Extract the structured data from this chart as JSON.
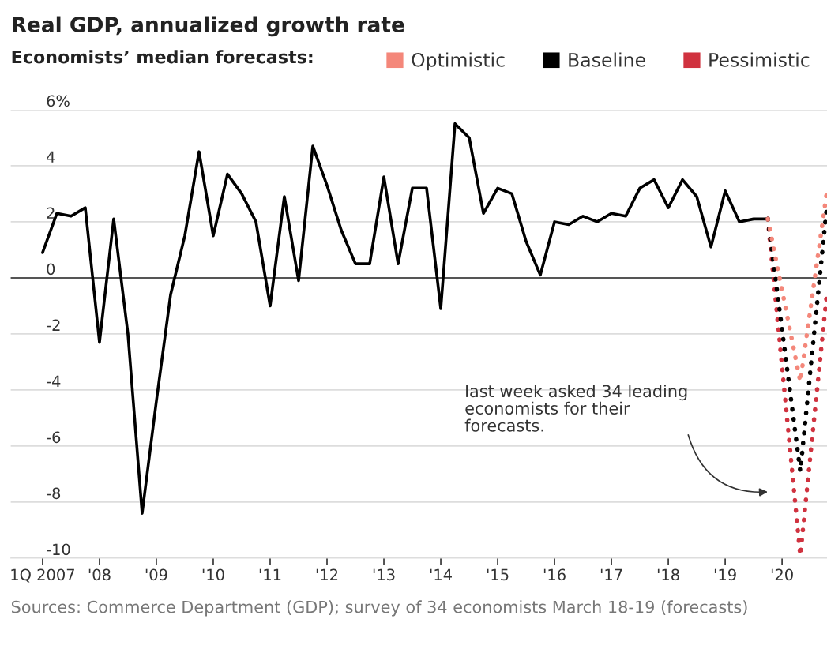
{
  "chart_data": {
    "type": "line",
    "title": "Real GDP, annualized growth rate",
    "legend_title": "Economists’ median forecasts:",
    "x": [
      2007,
      2007.25,
      2007.5,
      2007.75,
      2008,
      2008.25,
      2008.5,
      2008.75,
      2009,
      2009.25,
      2009.5,
      2009.75,
      2010,
      2010.25,
      2010.5,
      2010.75,
      2011,
      2011.25,
      2011.5,
      2011.75,
      2012,
      2012.25,
      2012.5,
      2012.75,
      2013,
      2013.25,
      2013.5,
      2013.75,
      2014,
      2014.25,
      2014.5,
      2014.75,
      2015,
      2015.25,
      2015.5,
      2015.75,
      2016,
      2016.25,
      2016.5,
      2016.75,
      2017,
      2017.25,
      2017.5,
      2017.75,
      2018,
      2018.25,
      2018.5,
      2018.75,
      2019,
      2019.25,
      2019.5,
      2019.75
    ],
    "series": [
      {
        "color": "#000000",
        "line_style": "solid",
        "values": [
          0.9,
          2.3,
          2.2,
          2.5,
          -2.3,
          2.1,
          -2.0,
          -8.4,
          -4.4,
          -0.6,
          1.5,
          4.5,
          1.5,
          3.7,
          3.0,
          2.0,
          -1.0,
          2.9,
          -0.1,
          4.7,
          3.3,
          1.7,
          0.5,
          0.5,
          3.6,
          0.5,
          3.2,
          3.2,
          -1.1,
          5.5,
          5.0,
          2.3,
          3.2,
          3.0,
          1.3,
          0.1,
          2.0,
          1.9,
          2.2,
          2.0,
          2.3,
          2.2,
          3.2,
          3.5,
          2.5,
          3.5,
          2.9,
          1.1,
          3.1,
          2.0,
          2.1,
          2.1
        ]
      },
      {
        "name": "Optimistic",
        "color": "#f4877a",
        "line_style": "dotted",
        "x": [
          2019.75,
          2020.32,
          2020.79
        ],
        "values": [
          2.1,
          -3.7,
          3.1
        ]
      },
      {
        "name": "Baseline",
        "color": "#000000",
        "line_style": "dotted",
        "x": [
          2019.75,
          2020.32,
          2020.79
        ],
        "values": [
          2.1,
          -6.9,
          2.6
        ]
      },
      {
        "name": "Pessimistic",
        "color": "#d0323f",
        "line_style": "dotted",
        "x": [
          2019.75,
          2020.32,
          2020.79
        ],
        "values": [
          2.1,
          -9.9,
          -0.5
        ]
      }
    ],
    "xlim": [
      2006.44,
      2020.79
    ],
    "xticks": [
      {
        "value": 2007,
        "label": "1Q 2007"
      },
      {
        "value": 2008,
        "label": "'08"
      },
      {
        "value": 2009,
        "label": "'09"
      },
      {
        "value": 2010,
        "label": "'10"
      },
      {
        "value": 2011,
        "label": "'11"
      },
      {
        "value": 2012,
        "label": "'12"
      },
      {
        "value": 2013,
        "label": "'13"
      },
      {
        "value": 2014,
        "label": "'14"
      },
      {
        "value": 2015,
        "label": "'15"
      },
      {
        "value": 2016,
        "label": "'16"
      },
      {
        "value": 2017,
        "label": "'17"
      },
      {
        "value": 2018,
        "label": "'18"
      },
      {
        "value": 2019,
        "label": "'19"
      },
      {
        "value": 2020,
        "label": "'20"
      }
    ],
    "ylim": [
      -10,
      6
    ],
    "yticks": [
      -10,
      -8,
      -6,
      -4,
      -2,
      0,
      2,
      4,
      {
        "value": 6,
        "label": "6%"
      }
    ],
    "grid": "y",
    "legend": "top",
    "marker": "none",
    "ref_lines": [
      {
        "axis": "y",
        "value": 0,
        "color": "#555555"
      }
    ],
    "annotations": [
      "last week asked 34 leading\neconomists for their\nforecasts.",
      "Sources: Commerce Department (GDP); survey of 34 economists March 18-19 (forecasts)"
    ]
  }
}
